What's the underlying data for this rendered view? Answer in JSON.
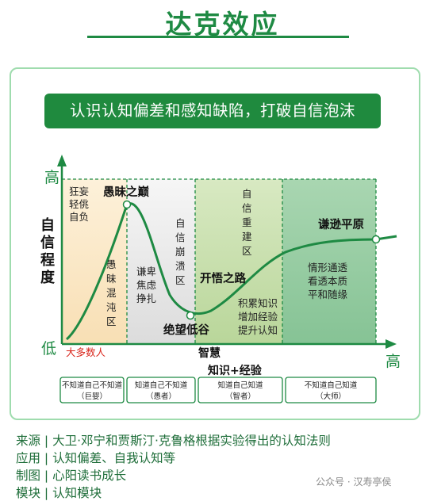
{
  "title": "达克效应",
  "banner": "认识认知偏差和感知缺陷，打破自信泡沫",
  "axes": {
    "y_high": "高",
    "y_low": "低",
    "y_title": [
      "自",
      "信",
      "程",
      "度"
    ],
    "x_high": "高",
    "x_title_1": "智慧",
    "x_title_2": "知识+经验",
    "majority": "大多数人"
  },
  "zones": [
    {
      "label": [
        "狂妄",
        "轻佻",
        "自负"
      ],
      "color": "#fbe9c9"
    },
    {
      "label": [
        "愚",
        "昧",
        "混",
        "沌",
        "区"
      ],
      "color": "#fbe9c9"
    },
    {
      "label": [
        "谦卑",
        "焦虑",
        "挣扎"
      ],
      "color": "#e6e6e6"
    },
    {
      "label": [
        "自",
        "信",
        "崩",
        "溃",
        "区"
      ],
      "color": "#e6e6e6"
    },
    {
      "label": [
        "自",
        "信",
        "重",
        "建",
        "区"
      ],
      "color": "#cfe3b6"
    },
    {
      "label": [
        "积累知识",
        "增加经验",
        "提升认知"
      ],
      "color": "#cfe3b6"
    },
    {
      "label": [
        "情形通透",
        "看透本质",
        "平和随缘"
      ],
      "color": "#9fd0a8"
    }
  ],
  "points": {
    "peak": "愚昧之巅",
    "valley": "绝望低谷",
    "slope": "开悟之路",
    "plateau": "谦逊平原"
  },
  "stages": [
    {
      "top": "不知道自己不知道",
      "bottom": "（巨婴）"
    },
    {
      "top": "知道自己不知道",
      "bottom": "（愚者）"
    },
    {
      "top": "知道自己知道",
      "bottom": "（智者）"
    },
    {
      "top": "不知道自己知道",
      "bottom": "（大师）"
    }
  ],
  "footer": [
    "来源 | 大卫·邓宁和贾斯汀·克鲁格根据实验得出的认知法则",
    "应用 | 认知偏差、自我认知等",
    "制图 | 心阳读书成长",
    "模块 | 认知模块"
  ],
  "watermark": "公众号 · 汉寿亭侯",
  "colors": {
    "green": "#1e8a43",
    "dark_green": "#1f8a3e",
    "red": "#d9261c"
  }
}
